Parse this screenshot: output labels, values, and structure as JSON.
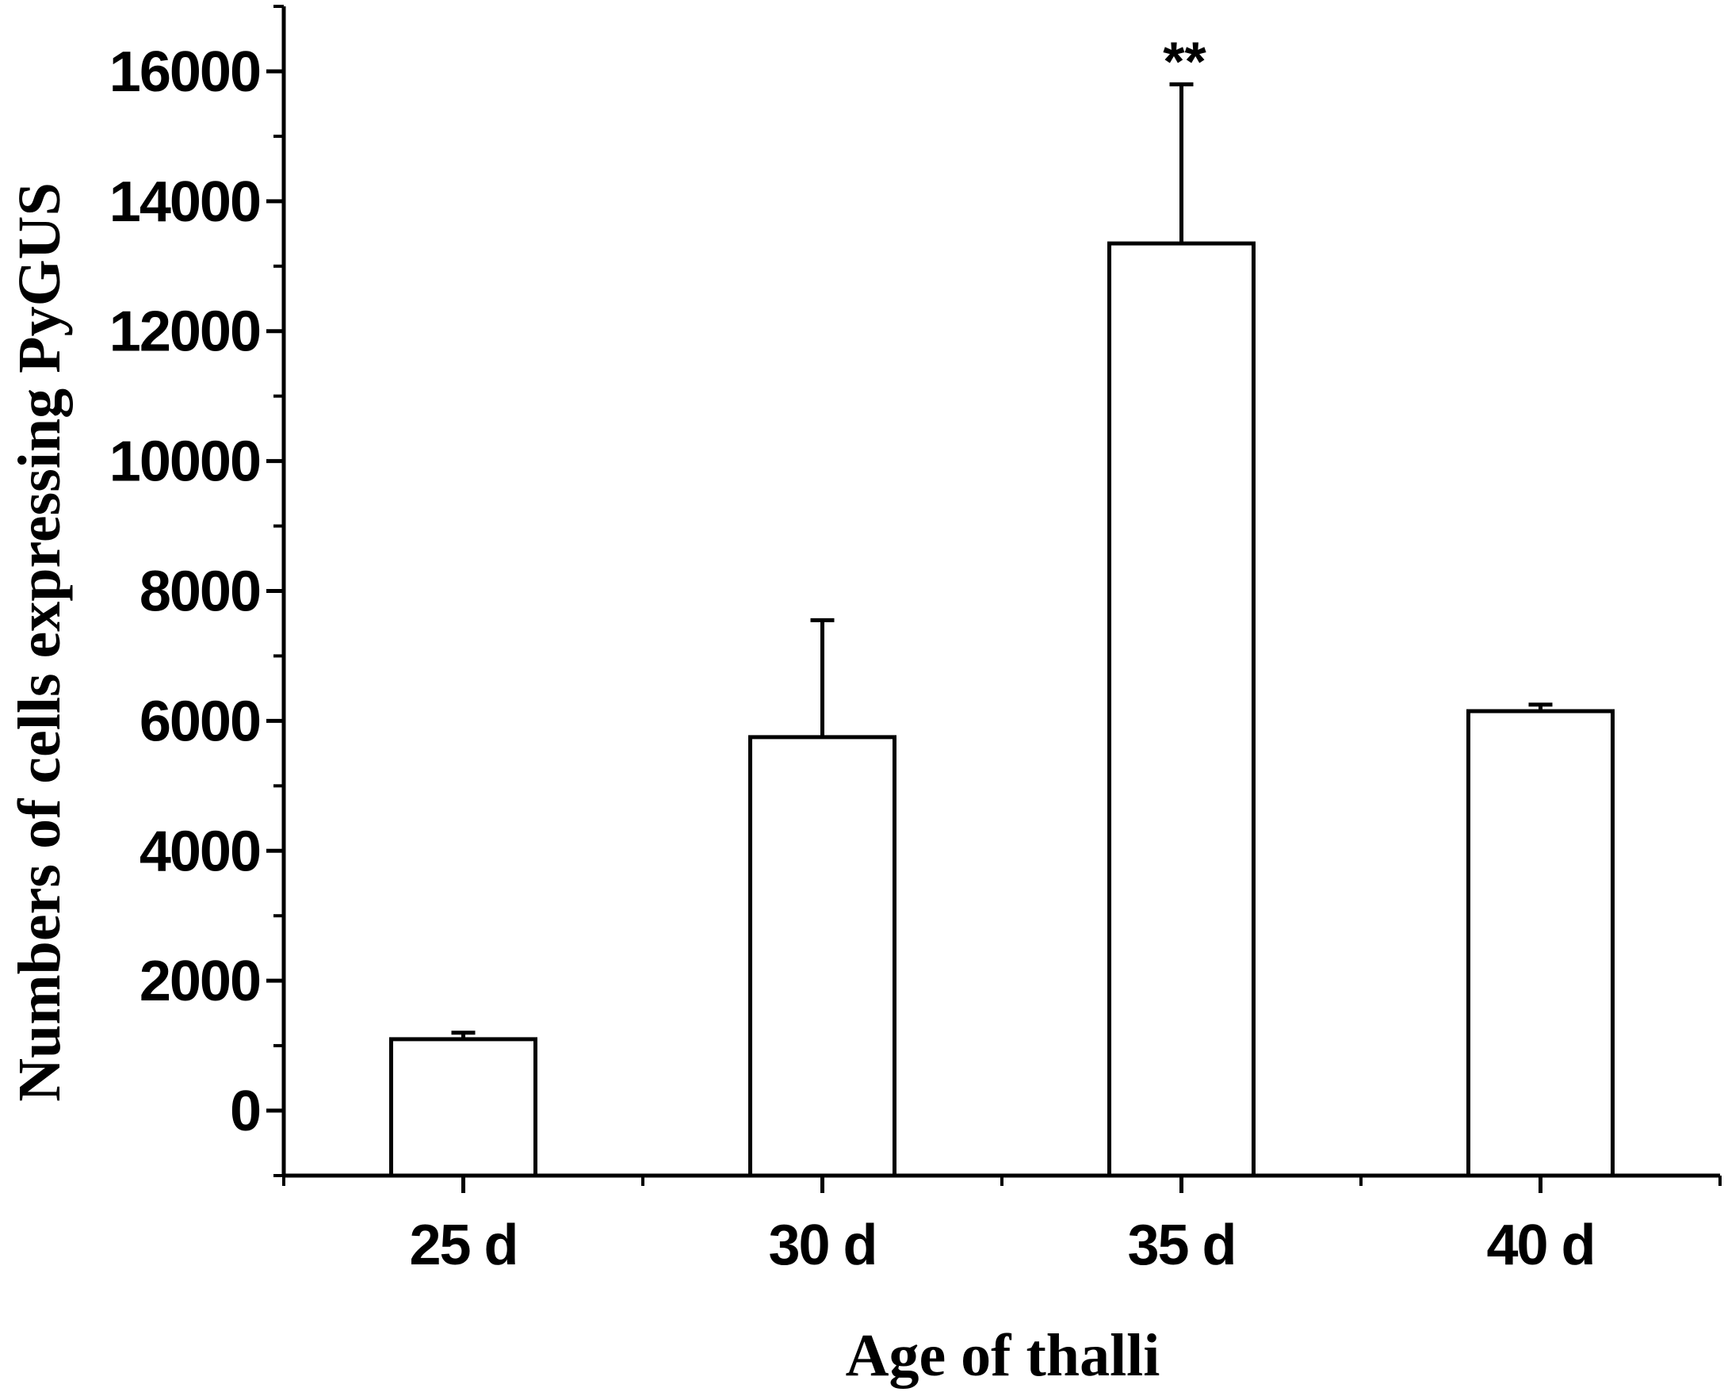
{
  "chart_data": {
    "type": "bar",
    "categories": [
      "25 d",
      "30 d",
      "35 d",
      "40 d"
    ],
    "values": [
      1100,
      5750,
      13350,
      6150
    ],
    "errors": [
      100,
      1800,
      2450,
      100
    ],
    "annotations": [
      {
        "category": "35 d",
        "text": "**"
      }
    ],
    "title": "",
    "xlabel": "Age of thalli",
    "ylabel": "Numbers of cells expressing PyGUS",
    "ylim": [
      -1000,
      17000
    ],
    "yticks": [
      0,
      2000,
      4000,
      6000,
      8000,
      10000,
      12000,
      14000,
      16000
    ],
    "ytick_labels": [
      "0",
      "2000",
      "4000",
      "6000",
      "8000",
      "10000",
      "12000",
      "14000",
      "16000"
    ],
    "grid": false,
    "legend": "none",
    "colors": {
      "bar_fill": "#ffffff",
      "bar_stroke": "#000000",
      "axis": "#000000"
    }
  }
}
